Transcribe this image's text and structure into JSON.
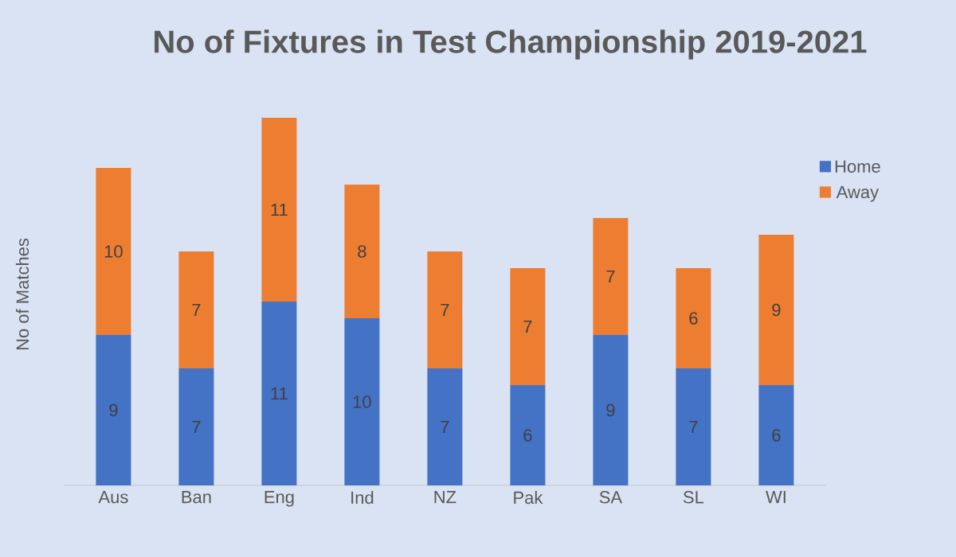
{
  "chart_data": {
    "type": "bar",
    "title": "No of Fixtures in Test Championship 2019-2021",
    "ylabel": "No of Matches",
    "stacked": true,
    "data_labels": true,
    "legend": "right",
    "categories": [
      "Aus",
      "Ban",
      "Eng",
      "Ind",
      "NZ",
      "Pak",
      "SA",
      "SL",
      "WI"
    ],
    "series": [
      {
        "name": "Home",
        "color": "#4472c4",
        "values": [
          9,
          7,
          11,
          10,
          7,
          6,
          9,
          7,
          6
        ]
      },
      {
        "name": "Away",
        "color": "#ed7d31",
        "values": [
          10,
          7,
          11,
          8,
          7,
          7,
          7,
          6,
          9
        ]
      }
    ]
  }
}
